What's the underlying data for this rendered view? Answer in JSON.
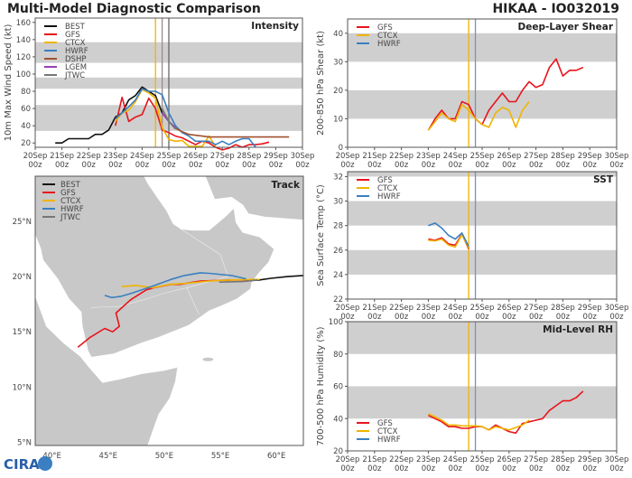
{
  "header": {
    "title": "Multi-Model Diagnostic Comparison",
    "storm": "HIKAA - IO032019"
  },
  "logo": {
    "text": "CIRA"
  },
  "colors": {
    "BEST": "#111111",
    "GFS": "#e8141c",
    "CTCX": "#f0b400",
    "HWRF": "#3a7fc1",
    "DSHP": "#a0522d",
    "LGEM": "#9b3fb5",
    "JTWC": "#777777",
    "band": "#cfcfcf",
    "land": "#c8c8c8"
  },
  "chart_data": [
    {
      "type": "line",
      "title": "Intensity",
      "ylabel": "10m Max Wind Speed (kt)",
      "ylim": [
        15,
        165
      ],
      "yticks": [
        20,
        40,
        60,
        80,
        100,
        120,
        140,
        160
      ],
      "xlim": [
        "2019-09-20T00",
        "2019-09-30T00"
      ],
      "xticks": [
        "20Sep 00z",
        "21Sep 00z",
        "22Sep 00z",
        "23Sep 00z",
        "24Sep 00z",
        "25Sep 00z",
        "26Sep 00z",
        "27Sep 00z",
        "28Sep 00z",
        "29Sep 00z",
        "30Sep 00z"
      ],
      "bands": [
        [
          34,
          64
        ],
        [
          83,
          96
        ],
        [
          113,
          137
        ]
      ],
      "vlines": [
        {
          "t": "2019-09-24T12",
          "color": "#f0b400"
        },
        {
          "t": "2019-09-24T18",
          "color": "#9a8a8a"
        },
        {
          "t": "2019-09-25T00",
          "color": "#666666"
        }
      ],
      "legend": "top-left",
      "series": [
        {
          "name": "BEST",
          "t0": "2019-09-20T18",
          "values": [
            20,
            20,
            25,
            25,
            25,
            25,
            30,
            30,
            35,
            50,
            55,
            70,
            75,
            85,
            80,
            75,
            55,
            45
          ]
        },
        {
          "name": "GFS",
          "t0": "2019-09-23T00",
          "values": [
            40,
            73,
            45,
            50,
            53,
            72,
            60,
            35,
            32,
            28,
            26,
            22,
            18,
            22,
            20,
            15,
            12,
            14,
            18,
            15,
            18,
            18,
            19,
            21
          ]
        },
        {
          "name": "CTCX",
          "t0": "2019-09-23T00",
          "values": [
            45,
            55,
            58,
            68,
            82,
            78,
            72,
            38,
            24,
            22,
            23,
            16,
            16,
            16,
            28,
            16
          ]
        },
        {
          "name": "HWRF",
          "t0": "2019-09-23T00",
          "values": [
            48,
            55,
            62,
            70,
            83,
            80,
            80,
            76,
            55,
            40,
            32,
            28,
            22,
            22,
            22,
            18,
            22,
            18,
            22,
            25,
            25,
            15
          ]
        },
        {
          "name": "DSHP",
          "t0": "2019-09-24T18",
          "values": [
            55,
            45,
            37,
            33,
            30,
            29,
            28,
            27,
            27,
            27,
            27,
            27,
            27,
            27,
            27,
            27,
            27,
            27,
            27,
            27
          ]
        },
        {
          "name": "LGEM",
          "t0": "2019-09-24T18",
          "values": [
            55,
            45,
            38
          ]
        },
        {
          "name": "JTWC",
          "t0": "2019-09-24T18",
          "values": [
            60,
            45,
            36
          ]
        }
      ]
    },
    {
      "type": "line",
      "title": "Deep-Layer Shear",
      "ylabel": "200-850 hPa Shear (kt)",
      "ylim": [
        0,
        45
      ],
      "yticks": [
        0,
        10,
        20,
        30,
        40
      ],
      "xlim": [
        "2019-09-20T00",
        "2019-09-30T00"
      ],
      "xticks": [
        "20Sep 00z",
        "21Sep 00z",
        "22Sep 00z",
        "23Sep 00z",
        "24Sep 00z",
        "25Sep 00z",
        "26Sep 00z",
        "27Sep 00z",
        "28Sep 00z",
        "29Sep 00z",
        "30Sep 00z"
      ],
      "bands": [
        [
          10,
          20
        ],
        [
          30,
          40
        ]
      ],
      "vlines": [
        {
          "t": "2019-09-24T12",
          "color": "#f0b400"
        },
        {
          "t": "2019-09-24T18",
          "color": "#8090b8"
        }
      ],
      "legend": "top-left",
      "series": [
        {
          "name": "GFS",
          "t0": "2019-09-23T00",
          "values": [
            6,
            10,
            13,
            10,
            10,
            16,
            15,
            10,
            8,
            13,
            16,
            19,
            16,
            16,
            20,
            23,
            21,
            22,
            28,
            31,
            25,
            27,
            27,
            28
          ]
        },
        {
          "name": "CTCX",
          "t0": "2019-09-23T00",
          "values": [
            6,
            9,
            12,
            10,
            9,
            15,
            13,
            10,
            8,
            7,
            12,
            14,
            13,
            7,
            13,
            16
          ]
        },
        {
          "name": "HWRF",
          "t0": "2019-09-23T00",
          "values": []
        }
      ]
    },
    {
      "type": "line",
      "title": "SST",
      "ylabel": "Sea Surface Temp (°C)",
      "ylim": [
        22,
        32.4
      ],
      "yticks": [
        22,
        24,
        26,
        28,
        30,
        32
      ],
      "xlim": [
        "2019-09-20T00",
        "2019-09-30T00"
      ],
      "xticks": [
        "20Sep 00z",
        "21Sep 00z",
        "22Sep 00z",
        "23Sep 00z",
        "24Sep 00z",
        "25Sep 00z",
        "26Sep 00z",
        "27Sep 00z",
        "28Sep 00z",
        "29Sep 00z",
        "30Sep 00z"
      ],
      "bands": [
        [
          24,
          26
        ],
        [
          28,
          30
        ],
        [
          32,
          32.4
        ]
      ],
      "vlines": [
        {
          "t": "2019-09-24T12",
          "color": "#f0b400"
        },
        {
          "t": "2019-09-24T18",
          "color": "#8090b8"
        }
      ],
      "legend": "top-left",
      "series": [
        {
          "name": "GFS",
          "t0": "2019-09-23T00",
          "values": [
            26.9,
            26.8,
            27.0,
            26.5,
            26.4,
            27.3,
            26.1
          ]
        },
        {
          "name": "CTCX",
          "t0": "2019-09-23T00",
          "values": [
            26.8,
            26.75,
            26.9,
            26.4,
            26.25,
            27.25,
            26.2
          ]
        },
        {
          "name": "HWRF",
          "t0": "2019-09-23T00",
          "values": [
            28.0,
            28.2,
            27.8,
            27.2,
            26.9,
            27.4,
            26.3
          ]
        }
      ]
    },
    {
      "type": "line",
      "title": "Mid-Level RH",
      "ylabel": "700-500 hPa Humidity (%)",
      "ylim": [
        20,
        100
      ],
      "yticks": [
        20,
        40,
        60,
        80,
        100
      ],
      "xlim": [
        "2019-09-20T00",
        "2019-09-30T00"
      ],
      "xticks": [
        "20Sep 00z",
        "21Sep 00z",
        "22Sep 00z",
        "23Sep 00z",
        "24Sep 00z",
        "25Sep 00z",
        "26Sep 00z",
        "27Sep 00z",
        "28Sep 00z",
        "29Sep 00z",
        "30Sep 00z"
      ],
      "bands": [
        [
          40,
          60
        ],
        [
          80,
          100
        ]
      ],
      "vlines": [
        {
          "t": "2019-09-24T12",
          "color": "#f0b400"
        },
        {
          "t": "2019-09-24T18",
          "color": "#8090b8"
        }
      ],
      "legend": "bottom-left",
      "series": [
        {
          "name": "GFS",
          "t0": "2019-09-23T00",
          "values": [
            42,
            40,
            38,
            35,
            35,
            34,
            34,
            35,
            35,
            33,
            36,
            34,
            32,
            31,
            37,
            38,
            39,
            40,
            45,
            48,
            51,
            51,
            53,
            57
          ]
        },
        {
          "name": "CTCX",
          "t0": "2019-09-23T00",
          "values": [
            43,
            41,
            39,
            36,
            36,
            35.5,
            35.5,
            35.5,
            35,
            33,
            35,
            34,
            33,
            34.5,
            36,
            39
          ]
        },
        {
          "name": "HWRF",
          "t0": "2019-09-23T00",
          "values": []
        }
      ]
    },
    {
      "type": "map",
      "title": "Track",
      "lonlim": [
        38.5,
        62.4
      ],
      "latlim": [
        4.7,
        29.1
      ],
      "xticks": [
        {
          "v": 40,
          "label": "40°E"
        },
        {
          "v": 45,
          "label": "45°E"
        },
        {
          "v": 50,
          "label": "50°E"
        },
        {
          "v": 55,
          "label": "55°E"
        },
        {
          "v": 60,
          "label": "60°E"
        }
      ],
      "yticks": [
        {
          "v": 5,
          "label": "5°N"
        },
        {
          "v": 10,
          "label": "10°N"
        },
        {
          "v": 15,
          "label": "15°N"
        },
        {
          "v": 20,
          "label": "20°N"
        },
        {
          "v": 25,
          "label": "25°N"
        }
      ],
      "legend": "top-left",
      "series": [
        {
          "name": "BEST",
          "points": [
            [
              62.5,
              20.1
            ],
            [
              61,
              20.0
            ],
            [
              59.5,
              19.85
            ],
            [
              58.5,
              19.7
            ],
            [
              57.3,
              19.6
            ]
          ]
        },
        {
          "name": "GFS",
          "points": [
            [
              57.3,
              19.7
            ],
            [
              56.1,
              19.7
            ],
            [
              53.2,
              19.6
            ],
            [
              51.4,
              19.3
            ],
            [
              50.6,
              19.3
            ],
            [
              49.1,
              19.0
            ],
            [
              48.4,
              18.8
            ],
            [
              47.0,
              17.9
            ],
            [
              45.7,
              16.7
            ],
            [
              46.0,
              15.5
            ],
            [
              45.4,
              15.0
            ],
            [
              44.7,
              15.3
            ],
            [
              43.4,
              14.5
            ],
            [
              42.3,
              13.6
            ]
          ]
        },
        {
          "name": "CTCX",
          "points": [
            [
              58.5,
              19.75
            ],
            [
              56,
              19.7
            ],
            [
              54,
              19.6
            ],
            [
              52,
              19.4
            ],
            [
              50.5,
              19.3
            ],
            [
              49,
              19.0
            ],
            [
              47.5,
              19.2
            ],
            [
              46.2,
              19.1
            ]
          ]
        },
        {
          "name": "HWRF",
          "points": [
            [
              57.3,
              19.8
            ],
            [
              56,
              20.1
            ],
            [
              54.0,
              20.3
            ],
            [
              53.2,
              20.35
            ],
            [
              51.8,
              20.1
            ],
            [
              50.6,
              19.75
            ],
            [
              49.0,
              19.15
            ],
            [
              47.1,
              18.5
            ],
            [
              46.1,
              18.2
            ],
            [
              45.3,
              18.1
            ],
            [
              44.7,
              18.3
            ]
          ]
        },
        {
          "name": "JTWC",
          "points": [
            [
              58.3,
              19.7
            ],
            [
              57,
              19.55
            ],
            [
              54.9,
              19.5
            ]
          ]
        }
      ]
    }
  ]
}
